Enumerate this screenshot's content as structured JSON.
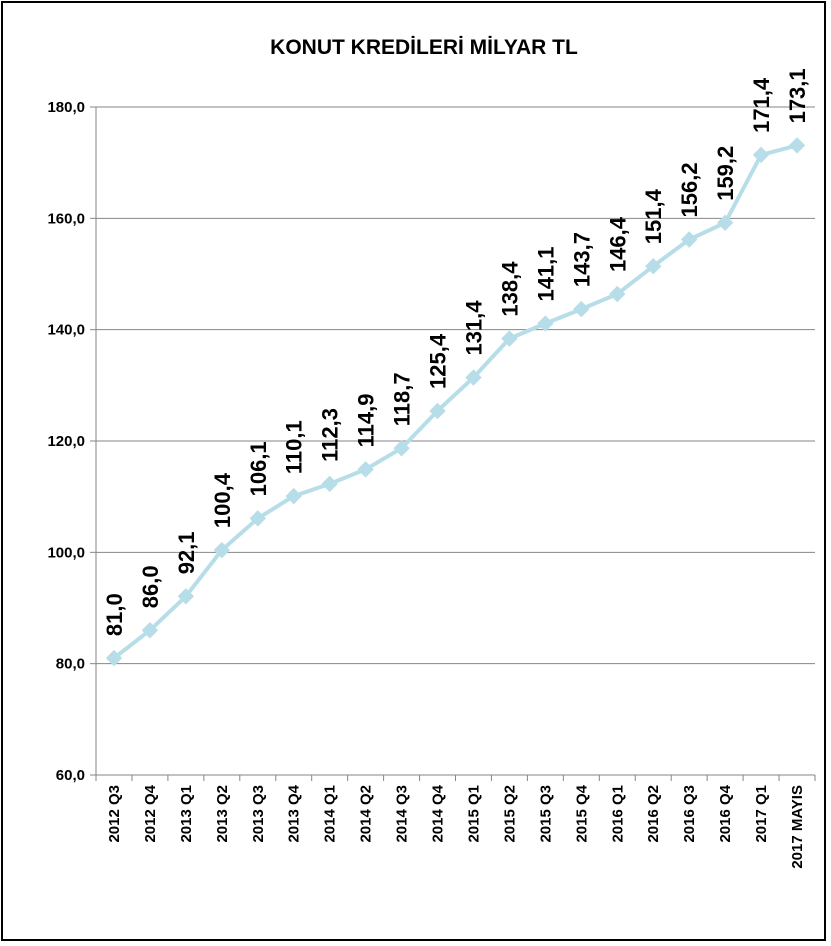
{
  "chart_data": {
    "type": "line",
    "title": "KONUT KREDİLERİ MİLYAR TL",
    "xlabel": "",
    "ylabel": "",
    "ylim": [
      60,
      180
    ],
    "yticks": [
      "60,0",
      "80,0",
      "100,0",
      "120,0",
      "140,0",
      "160,0",
      "180,0"
    ],
    "categories": [
      "2012 Q3",
      "2012 Q4",
      "2013 Q1",
      "2013 Q2",
      "2013 Q3",
      "2013 Q4",
      "2014 Q1",
      "2014 Q2",
      "2014 Q3",
      "2014 Q4",
      "2015 Q1",
      "2015 Q2",
      "2015 Q3",
      "2015 Q4",
      "2016 Q1",
      "2016 Q2",
      "2016 Q3",
      "2016 Q4",
      "2017 Q1",
      "2017 MAYIS"
    ],
    "values": [
      81.0,
      86.0,
      92.1,
      100.4,
      106.1,
      110.1,
      112.3,
      114.9,
      118.7,
      125.4,
      131.4,
      138.4,
      141.1,
      143.7,
      146.4,
      151.4,
      156.2,
      159.2,
      171.4,
      173.1
    ],
    "data_labels": [
      "81,0",
      "86,0",
      "92,1",
      "100,4",
      "106,1",
      "110,1",
      "112,3",
      "114,9",
      "118,7",
      "125,4",
      "131,4",
      "138,4",
      "141,1",
      "143,7",
      "146,4",
      "151,4",
      "156,2",
      "159,2",
      "171,4",
      "173,1"
    ],
    "grid": true,
    "legend": "none",
    "series_color": "#b7dee8",
    "grid_color": "#868686"
  }
}
